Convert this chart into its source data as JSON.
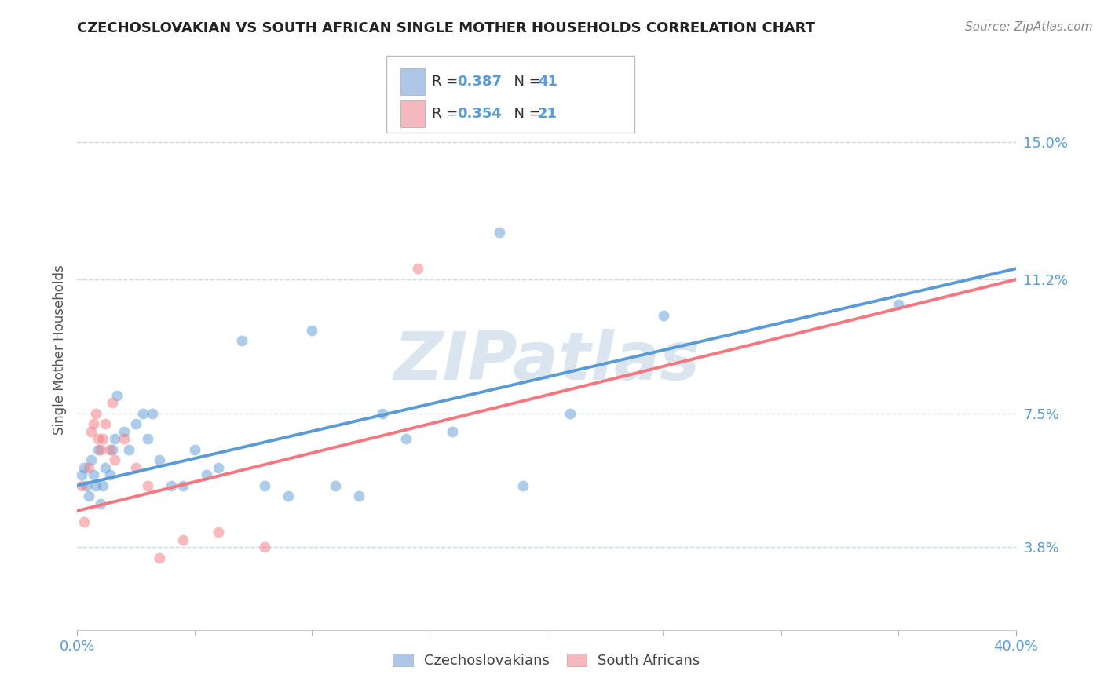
{
  "title": "CZECHOSLOVAKIAN VS SOUTH AFRICAN SINGLE MOTHER HOUSEHOLDS CORRELATION CHART",
  "source_text": "Source: ZipAtlas.com",
  "ylabel": "Single Mother Households",
  "watermark": "ZIPatlas",
  "xlim": [
    0.0,
    40.0
  ],
  "ylim": [
    1.5,
    17.0
  ],
  "yticks": [
    3.8,
    7.5,
    11.2,
    15.0
  ],
  "xticks": [
    0.0,
    40.0
  ],
  "xtick_labels": [
    "0.0%",
    "40.0%"
  ],
  "ytick_labels": [
    "3.8%",
    "7.5%",
    "11.2%",
    "15.0%"
  ],
  "grid_color": "#c8d8e8",
  "background_color": "#ffffff",
  "blue_color": "#5b9bd5",
  "pink_color": "#f4777f",
  "legend_color_blue": "#aec6e8",
  "legend_color_pink": "#f4b8be",
  "axis_label_color": "#5b9bd5",
  "title_color": "#222222",
  "czecho_x": [
    0.2,
    0.3,
    0.4,
    0.5,
    0.6,
    0.7,
    0.8,
    0.9,
    1.0,
    1.1,
    1.2,
    1.4,
    1.5,
    1.6,
    1.7,
    2.0,
    2.2,
    2.5,
    2.8,
    3.0,
    3.2,
    3.5,
    4.0,
    4.5,
    5.0,
    5.5,
    6.0,
    7.0,
    8.0,
    9.0,
    10.0,
    11.0,
    12.0,
    13.0,
    14.0,
    16.0,
    18.0,
    19.0,
    21.0,
    25.0,
    35.0
  ],
  "czecho_y": [
    5.8,
    6.0,
    5.5,
    5.2,
    6.2,
    5.8,
    5.5,
    6.5,
    5.0,
    5.5,
    6.0,
    5.8,
    6.5,
    6.8,
    8.0,
    7.0,
    6.5,
    7.2,
    7.5,
    6.8,
    7.5,
    6.2,
    5.5,
    5.5,
    6.5,
    5.8,
    6.0,
    9.5,
    5.5,
    5.2,
    9.8,
    5.5,
    5.2,
    7.5,
    6.8,
    7.0,
    12.5,
    5.5,
    7.5,
    10.2,
    10.5
  ],
  "sa_x": [
    0.2,
    0.3,
    0.5,
    0.6,
    0.7,
    0.8,
    0.9,
    1.0,
    1.1,
    1.2,
    1.4,
    1.5,
    1.6,
    2.0,
    2.5,
    3.0,
    3.5,
    4.5,
    6.0,
    8.0,
    14.5
  ],
  "sa_y": [
    5.5,
    4.5,
    6.0,
    7.0,
    7.2,
    7.5,
    6.8,
    6.5,
    6.8,
    7.2,
    6.5,
    7.8,
    6.2,
    6.8,
    6.0,
    5.5,
    3.5,
    4.0,
    4.2,
    3.8,
    11.5
  ],
  "blue_reg_x0": 0.0,
  "blue_reg_y0": 5.5,
  "blue_reg_x1": 40.0,
  "blue_reg_y1": 11.5,
  "pink_reg_x0": 0.0,
  "pink_reg_y0": 4.8,
  "pink_reg_x1": 40.0,
  "pink_reg_y1": 11.2,
  "dot_size": 100,
  "dot_alpha": 0.5,
  "line_width": 2.8
}
